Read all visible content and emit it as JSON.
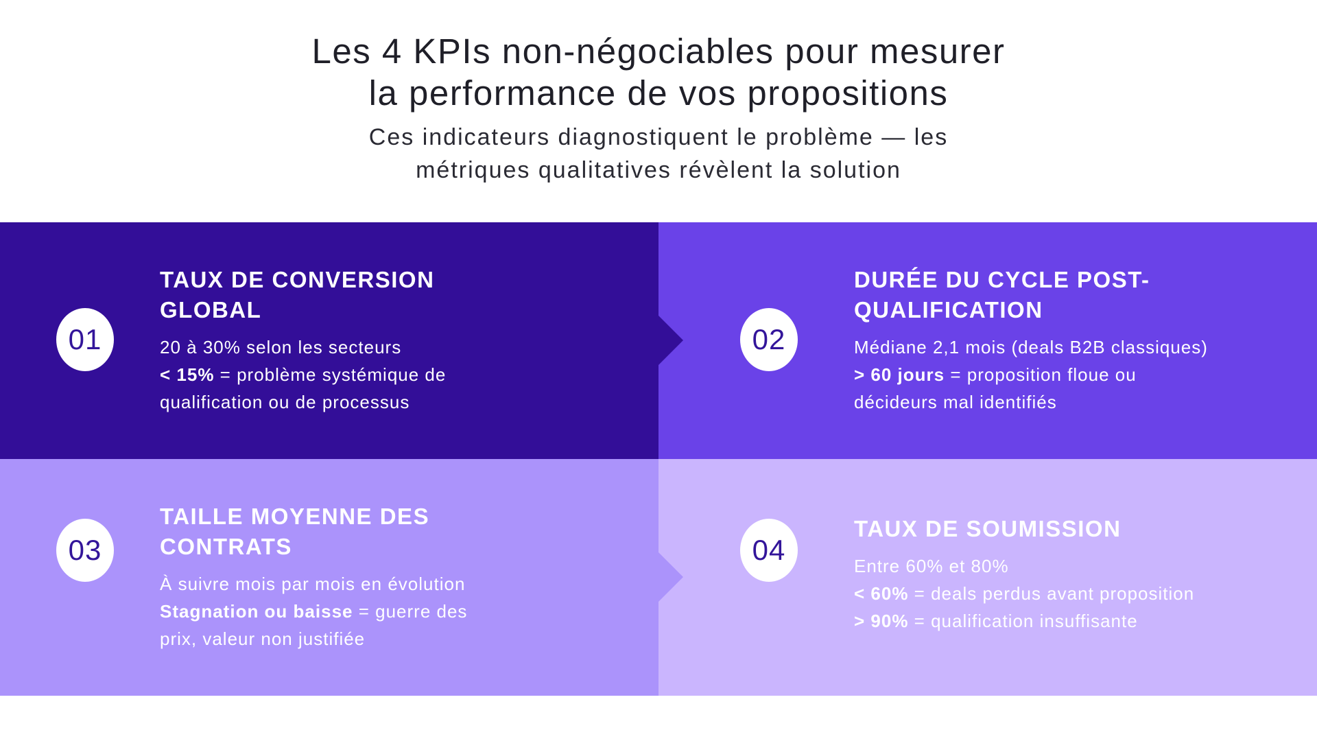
{
  "header": {
    "title_line1": "Les 4 KPIs non-négociables pour mesurer",
    "title_line2": "la performance de vos propositions",
    "subtitle_line1": "Ces indicateurs diagnostiquent le problème — les",
    "subtitle_line2": "métriques qualitatives révèlent la solution"
  },
  "colors": {
    "cell1": "#330e98",
    "cell2": "#6a42e8",
    "cell3": "#ab93fb",
    "cell4": "#cab5fe",
    "badge_text": "#33159a"
  },
  "kpis": [
    {
      "number": "01",
      "title": "TAUX DE CONVERSION GLOBAL",
      "line1": "20 à 30% selon les secteurs",
      "line2_bold": "< 15%",
      "line2_rest": " = problème systémique de",
      "line3": "qualification ou de processus"
    },
    {
      "number": "02",
      "title": "DURÉE DU CYCLE POST-QUALIFICATION",
      "line1": "Médiane 2,1 mois (deals B2B classiques)",
      "line2_bold": "> 60 jours",
      "line2_rest": " = proposition floue ou",
      "line3": "décideurs mal identifiés"
    },
    {
      "number": "03",
      "title": "TAILLE MOYENNE DES CONTRATS",
      "line1": "À suivre mois par mois en évolution",
      "line2_bold": "Stagnation ou baisse",
      "line2_rest": " = guerre des",
      "line3": "prix, valeur non justifiée"
    },
    {
      "number": "04",
      "title": "TAUX DE SOUMISSION",
      "line1": "Entre 60% et 80%",
      "line2_bold": "< 60%",
      "line2_rest": " = deals perdus avant proposition",
      "line3_bold": "> 90%",
      "line3_rest": " = qualification insuffisante"
    }
  ]
}
